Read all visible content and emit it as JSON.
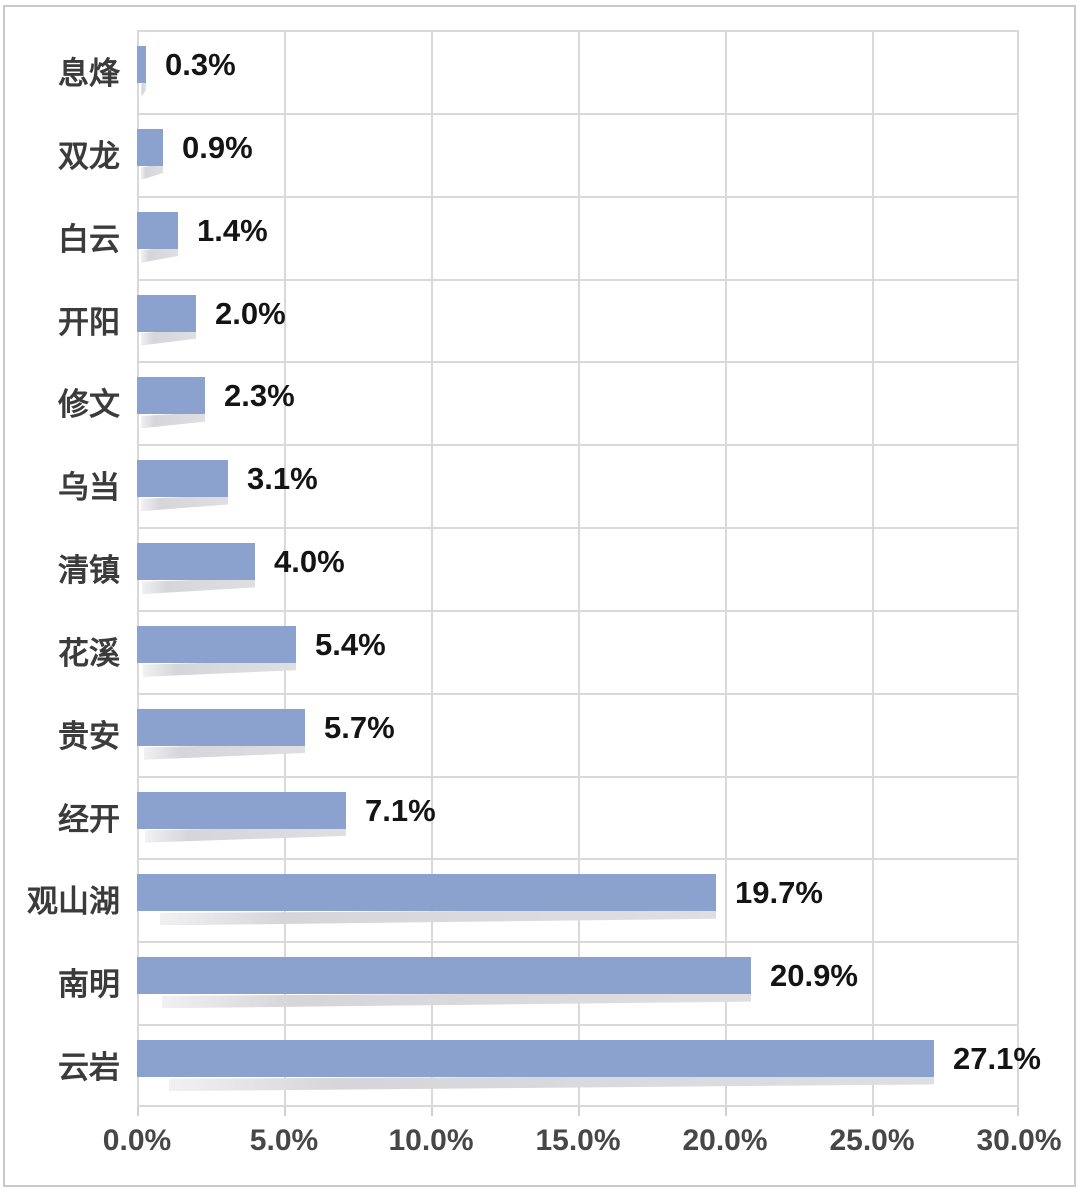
{
  "chart_data": {
    "type": "bar",
    "orientation": "horizontal",
    "title": "",
    "categories": [
      "息烽",
      "双龙",
      "白云",
      "开阳",
      "修文",
      "乌当",
      "清镇",
      "花溪",
      "贵安",
      "经开",
      "观山湖",
      "南明",
      "云岩"
    ],
    "values": [
      0.3,
      0.9,
      1.4,
      2.0,
      2.3,
      3.1,
      4.0,
      5.4,
      5.7,
      7.1,
      19.7,
      20.9,
      27.1
    ],
    "value_labels": [
      "0.3%",
      "0.9%",
      "1.4%",
      "2.0%",
      "2.3%",
      "3.1%",
      "4.0%",
      "5.4%",
      "5.7%",
      "7.1%",
      "19.7%",
      "20.9%",
      "27.1%"
    ],
    "x_tick_labels": [
      "0.0%",
      "5.0%",
      "10.0%",
      "15.0%",
      "20.0%",
      "25.0%",
      "30.0%"
    ],
    "x_tick_values": [
      0,
      5,
      10,
      15,
      20,
      25,
      30
    ],
    "xlim": [
      0,
      30
    ],
    "grid": true,
    "legend": false,
    "colors": {
      "bar": "#8CA2CE",
      "gridline": "#D9D9D9",
      "shadow": "#DCDCDF",
      "value_text": "#141414",
      "category_text": "#3B3B3B",
      "axis_text": "#474747",
      "frame_border": "#C9C9C9",
      "background": "#FFFFFF"
    }
  }
}
